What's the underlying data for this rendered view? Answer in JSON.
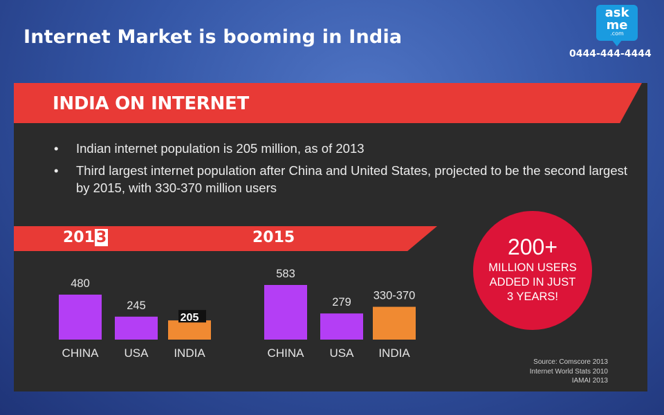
{
  "slide": {
    "title": "Internet Market is booming in India",
    "logo_lines": [
      "ask",
      "me",
      ".com"
    ],
    "phone": "0444-444-4444"
  },
  "infographic": {
    "heading": "INDIA ON INTERNET",
    "bullets": [
      "Indian internet population is 205 million, as of 2013",
      "Third largest internet population after China and United States, projected to be the second largest by 2015, with 330-370 million users"
    ],
    "year_labels": {
      "first_prefix": "201",
      "first_highlight": "3",
      "second": "2015"
    },
    "callout": {
      "value": "200+",
      "text": "MILLION USERS ADDED IN JUST 3 YEARS!"
    },
    "sources": [
      "Source: Comscore 2013",
      "Internet World Stats 2010",
      "IAMAI 2013"
    ]
  },
  "colors": {
    "background": "#3456a6",
    "banner_red": "#e83a36",
    "panel_dark": "#2b2b2b",
    "bar_purple": "#b43ef5",
    "bar_orange": "#f08a32",
    "circle_red": "#dc1438"
  },
  "chart_data": [
    {
      "type": "bar",
      "title": "2013",
      "categories": [
        "CHINA",
        "USA",
        "INDIA"
      ],
      "values": [
        480,
        245,
        205
      ],
      "labels": [
        "480",
        "245",
        "205"
      ],
      "ylim": [
        0,
        600
      ]
    },
    {
      "type": "bar",
      "title": "2015",
      "categories": [
        "CHINA",
        "USA",
        "INDIA"
      ],
      "values": [
        583,
        279,
        350
      ],
      "labels": [
        "583",
        "279",
        "330-370"
      ],
      "ylim": [
        0,
        600
      ]
    }
  ]
}
